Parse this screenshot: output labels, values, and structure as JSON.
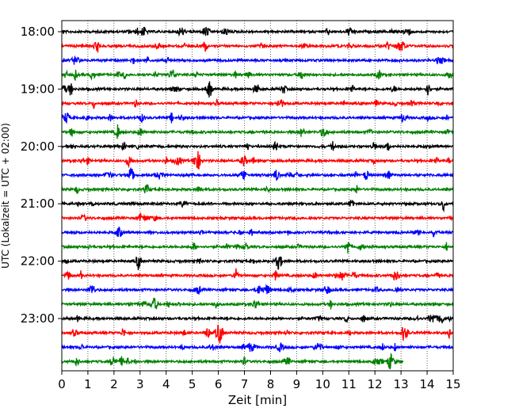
{
  "chart_data": {
    "type": "line",
    "title": "",
    "xlabel": "Zeit  [min]",
    "ylabel": "UTC (Lokalzeit = UTC + 02:00)",
    "xlim": [
      0,
      15
    ],
    "xticks": [
      "0",
      "1",
      "2",
      "3",
      "4",
      "5",
      "6",
      "7",
      "8",
      "9",
      "10",
      "11",
      "12",
      "13",
      "14",
      "15"
    ],
    "yticks": [
      "18:00",
      "19:00",
      "20:00",
      "21:00",
      "22:00",
      "23:00"
    ],
    "grid": "vertical dotted at each minute",
    "trace_colors": [
      "#000000",
      "#ff0000",
      "#0000ff",
      "#008000"
    ],
    "traces": [
      {
        "start": "18:00",
        "minutes": 15
      },
      {
        "start": "18:15",
        "minutes": 15
      },
      {
        "start": "18:30",
        "minutes": 15
      },
      {
        "start": "18:45",
        "minutes": 15
      },
      {
        "start": "19:00",
        "minutes": 15
      },
      {
        "start": "19:15",
        "minutes": 15
      },
      {
        "start": "19:30",
        "minutes": 15
      },
      {
        "start": "19:45",
        "minutes": 15
      },
      {
        "start": "20:00",
        "minutes": 15
      },
      {
        "start": "20:15",
        "minutes": 15
      },
      {
        "start": "20:30",
        "minutes": 15
      },
      {
        "start": "20:45",
        "minutes": 15
      },
      {
        "start": "21:00",
        "minutes": 15
      },
      {
        "start": "21:15",
        "minutes": 15
      },
      {
        "start": "21:30",
        "minutes": 15
      },
      {
        "start": "21:45",
        "minutes": 15
      },
      {
        "start": "22:00",
        "minutes": 15
      },
      {
        "start": "22:15",
        "minutes": 15
      },
      {
        "start": "22:30",
        "minutes": 15
      },
      {
        "start": "22:45",
        "minutes": 15
      },
      {
        "start": "23:00",
        "minutes": 15
      },
      {
        "start": "23:15",
        "minutes": 15
      },
      {
        "start": "23:30",
        "minutes": 15
      },
      {
        "start": "23:45",
        "minutes": 13.1
      }
    ]
  }
}
